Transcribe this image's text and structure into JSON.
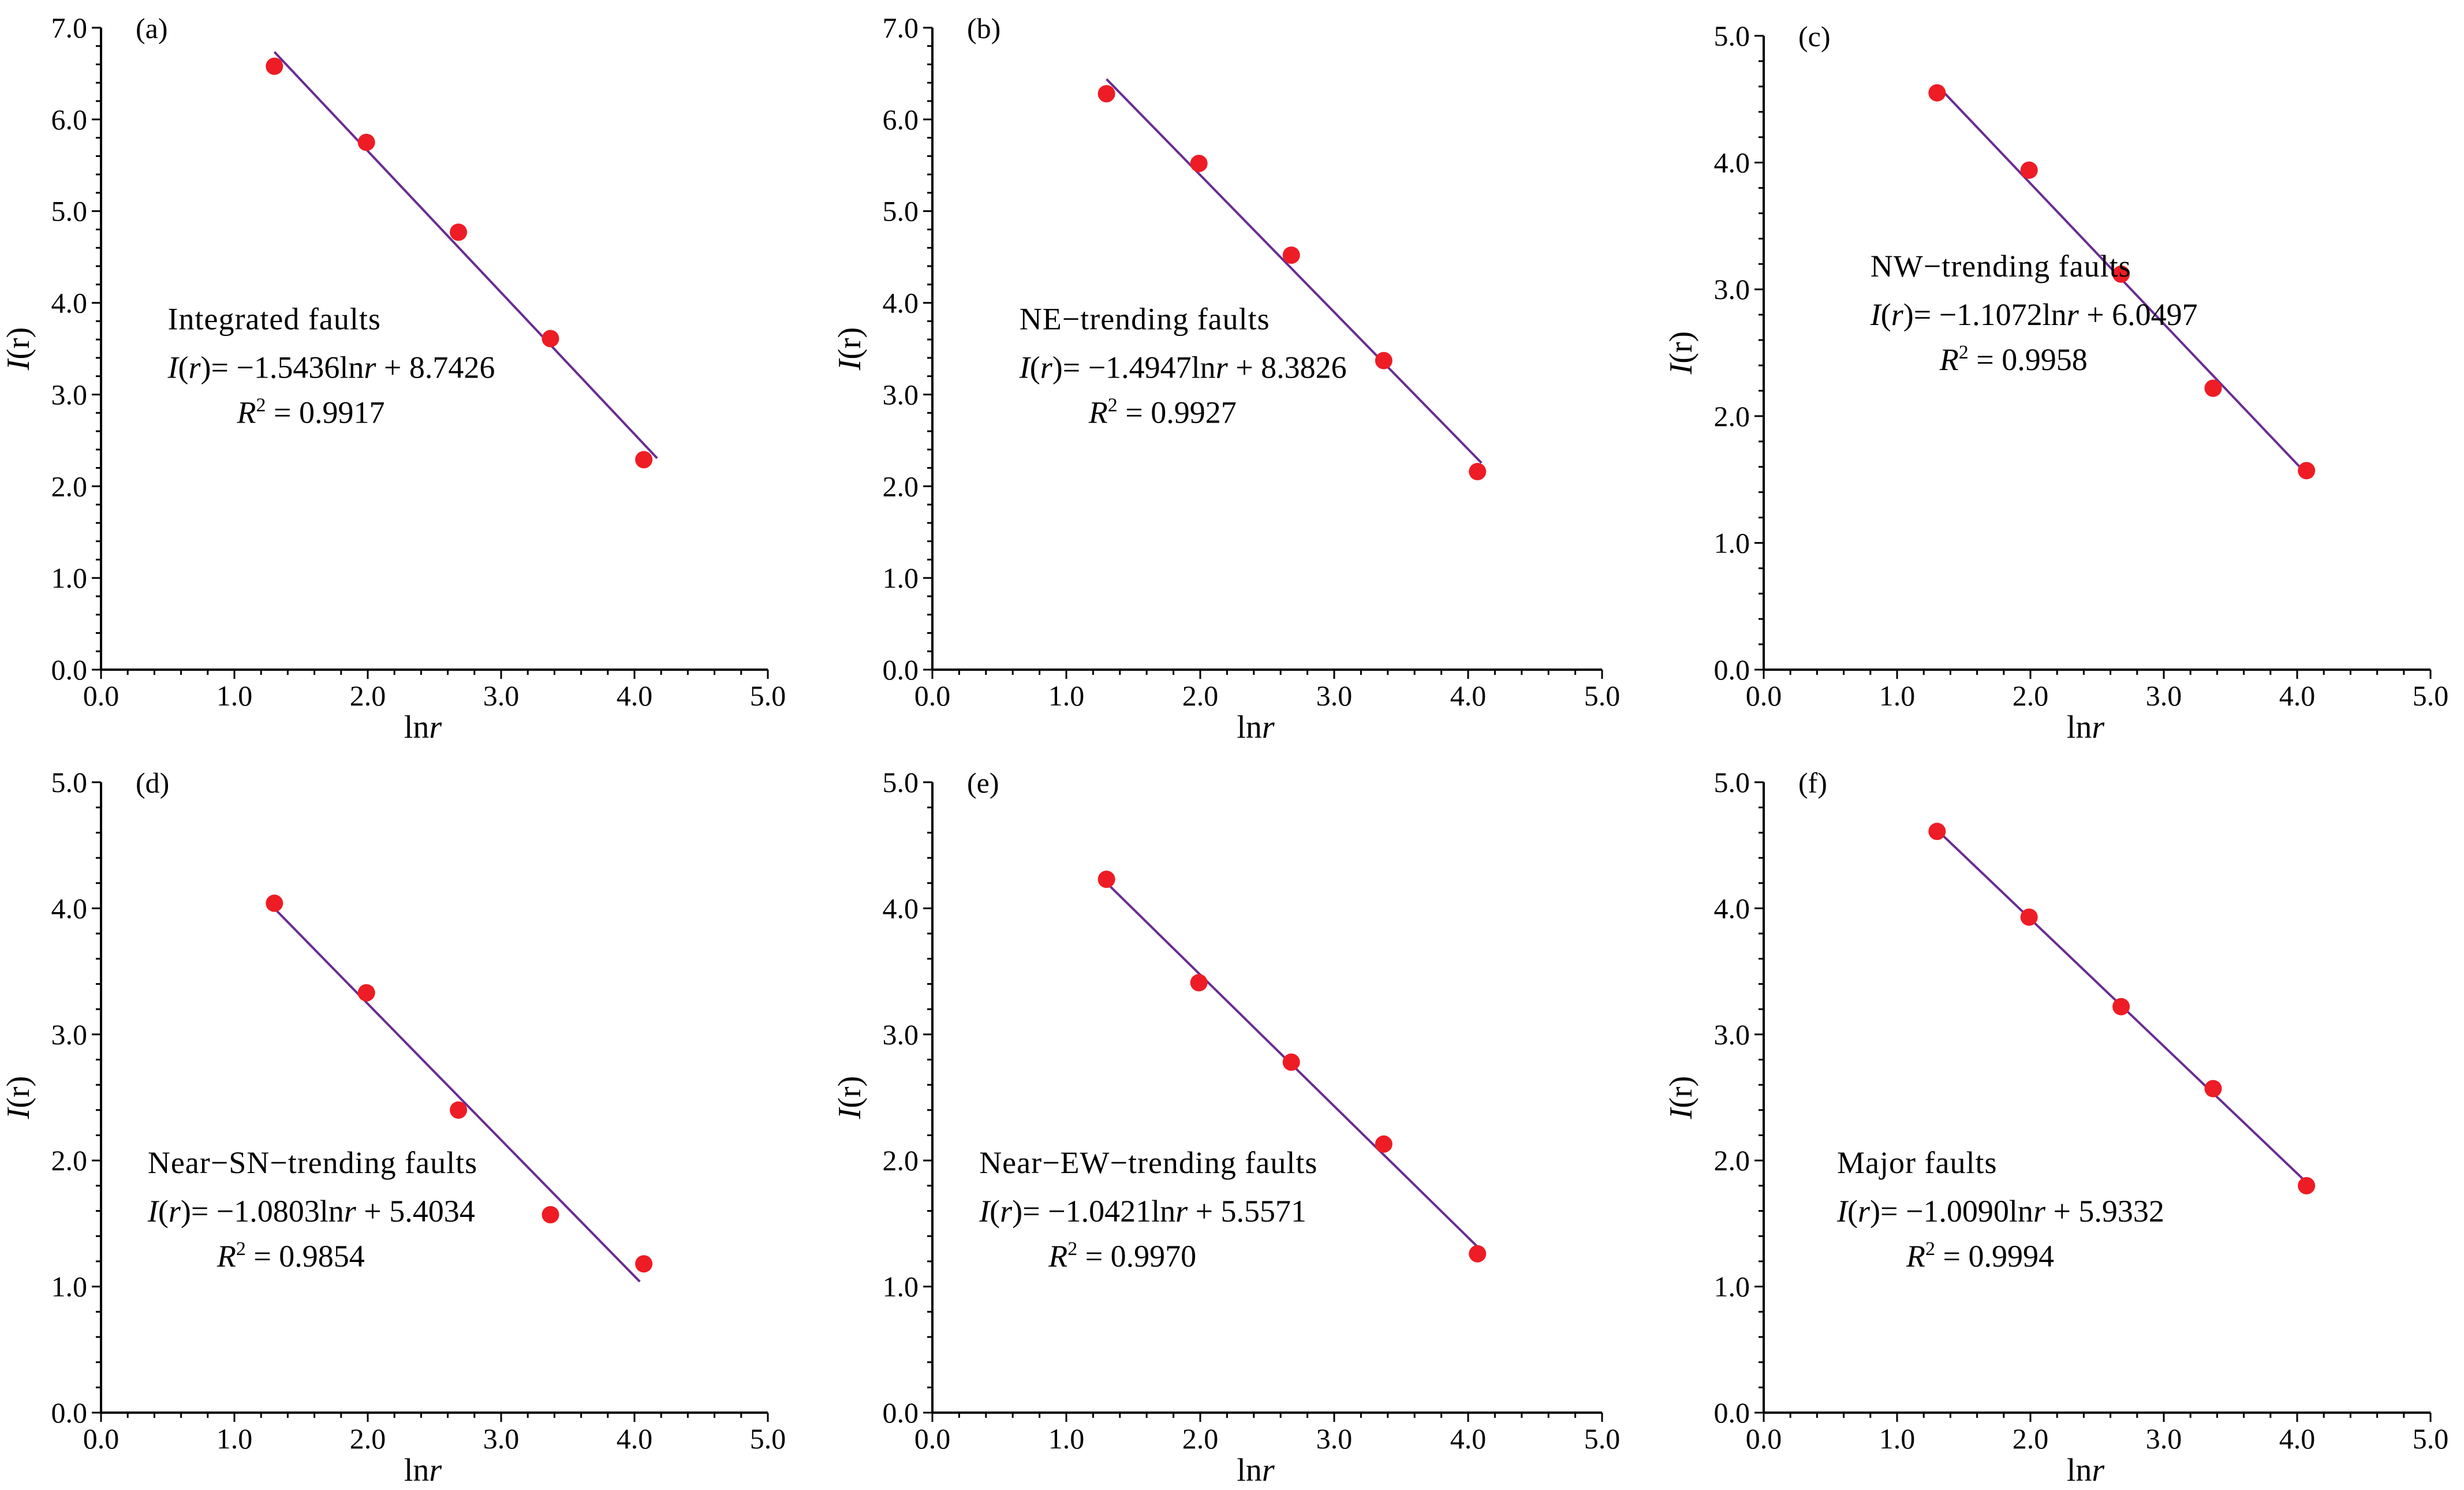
{
  "colors": {
    "point": "#ee1c25",
    "fit_line": "#6a2c91",
    "axis": "#000000"
  },
  "chart_data": [
    {
      "type": "scatter",
      "panel_label": "(a)",
      "series_name": "Integrated faults",
      "x": [
        1.3,
        1.99,
        2.68,
        3.37,
        4.07
      ],
      "y": [
        6.58,
        5.75,
        4.77,
        3.61,
        2.29
      ],
      "fit": {
        "slope": -1.5436,
        "intercept": 8.7426,
        "x_range": [
          1.3,
          4.17
        ]
      },
      "equation_text": "= −1.5436ln",
      "equation_tail": " + 8.7426",
      "r2_text": "= 0.9917",
      "xlabel": "ln",
      "xlabel_var": "r",
      "ylabel": "I",
      "ylabel_arg": "(r)",
      "xlim": [
        0,
        5
      ],
      "ylim": [
        0,
        7
      ],
      "xticks": [
        "0.0",
        "1.0",
        "2.0",
        "3.0",
        "4.0",
        "5.0"
      ],
      "yticks": [
        "0.0",
        "1.0",
        "2.0",
        "3.0",
        "4.0",
        "5.0",
        "6.0",
        "7.0"
      ]
    },
    {
      "type": "scatter",
      "panel_label": "(b)",
      "series_name": "NE−trending faults",
      "x": [
        1.3,
        1.99,
        2.68,
        3.37,
        4.07
      ],
      "y": [
        6.28,
        5.52,
        4.52,
        3.37,
        2.16
      ],
      "fit": {
        "slope": -1.4947,
        "intercept": 8.3826,
        "x_range": [
          1.3,
          4.1
        ]
      },
      "equation_text": "= −1.4947ln",
      "equation_tail": " + 8.3826",
      "r2_text": "= 0.9927",
      "xlabel": "ln",
      "xlabel_var": "r",
      "ylabel": "I",
      "ylabel_arg": "(r)",
      "xlim": [
        0,
        5
      ],
      "ylim": [
        0,
        7
      ],
      "xticks": [
        "0.0",
        "1.0",
        "2.0",
        "3.0",
        "4.0",
        "5.0"
      ],
      "yticks": [
        "0.0",
        "1.0",
        "2.0",
        "3.0",
        "4.0",
        "5.0",
        "6.0",
        "7.0"
      ]
    },
    {
      "type": "scatter",
      "panel_label": "(c)",
      "series_name": "NW−trending faults",
      "x": [
        1.3,
        1.99,
        2.68,
        3.37,
        4.07
      ],
      "y": [
        4.55,
        3.94,
        3.12,
        2.22,
        1.57
      ],
      "fit": {
        "slope": -1.1072,
        "intercept": 6.0497,
        "x_range": [
          1.3,
          4.08
        ]
      },
      "equation_text": "= −1.1072ln",
      "equation_tail": " + 6.0497",
      "r2_text": "= 0.9958",
      "xlabel": "ln",
      "xlabel_var": "r",
      "ylabel": "I",
      "ylabel_arg": "(r)",
      "xlim": [
        0,
        5
      ],
      "ylim": [
        0,
        5
      ],
      "xticks": [
        "0.0",
        "1.0",
        "2.0",
        "3.0",
        "4.0",
        "5.0"
      ],
      "yticks": [
        "0.0",
        "1.0",
        "2.0",
        "3.0",
        "4.0",
        "5.0"
      ]
    },
    {
      "type": "scatter",
      "panel_label": "(d)",
      "series_name": "Near−SN−trending faults",
      "x": [
        1.3,
        1.99,
        2.68,
        3.37,
        4.07
      ],
      "y": [
        4.04,
        3.33,
        2.4,
        1.57,
        1.18
      ],
      "fit": {
        "slope": -1.0803,
        "intercept": 5.4034,
        "x_range": [
          1.3,
          4.04
        ]
      },
      "equation_text": "= −1.0803ln",
      "equation_tail": " + 5.4034",
      "r2_text": "= 0.9854",
      "xlabel": "ln",
      "xlabel_var": "r",
      "ylabel": "I",
      "ylabel_arg": "(r)",
      "xlim": [
        0,
        5
      ],
      "ylim": [
        0,
        5
      ],
      "xticks": [
        "0.0",
        "1.0",
        "2.0",
        "3.0",
        "4.0",
        "5.0"
      ],
      "yticks": [
        "0.0",
        "1.0",
        "2.0",
        "3.0",
        "4.0",
        "5.0"
      ]
    },
    {
      "type": "scatter",
      "panel_label": "(e)",
      "series_name": "Near−EW−trending faults",
      "x": [
        1.3,
        1.99,
        2.68,
        3.37,
        4.07
      ],
      "y": [
        4.23,
        3.41,
        2.78,
        2.13,
        1.26
      ],
      "fit": {
        "slope": -1.0421,
        "intercept": 5.5571,
        "x_range": [
          1.3,
          4.1
        ]
      },
      "equation_text": "= −1.0421ln",
      "equation_tail": " + 5.5571",
      "r2_text": "= 0.9970",
      "xlabel": "ln",
      "xlabel_var": "r",
      "ylabel": "I",
      "ylabel_arg": "(r)",
      "xlim": [
        0,
        5
      ],
      "ylim": [
        0,
        5
      ],
      "xticks": [
        "0.0",
        "1.0",
        "2.0",
        "3.0",
        "4.0",
        "5.0"
      ],
      "yticks": [
        "0.0",
        "1.0",
        "2.0",
        "3.0",
        "4.0",
        "5.0"
      ]
    },
    {
      "type": "scatter",
      "panel_label": "(f)",
      "series_name": "Major faults",
      "x": [
        1.3,
        1.99,
        2.68,
        3.37,
        4.07
      ],
      "y": [
        4.61,
        3.93,
        3.22,
        2.57,
        1.8
      ],
      "fit": {
        "slope": -1.009,
        "intercept": 5.9332,
        "x_range": [
          1.3,
          4.08
        ]
      },
      "equation_text": "= −1.0090ln",
      "equation_tail": " + 5.9332",
      "r2_text": "= 0.9994",
      "xlabel": "ln",
      "xlabel_var": "r",
      "ylabel": "I",
      "ylabel_arg": "(r)",
      "xlim": [
        0,
        5
      ],
      "ylim": [
        0,
        5
      ],
      "xticks": [
        "0.0",
        "1.0",
        "2.0",
        "3.0",
        "4.0",
        "5.0"
      ],
      "yticks": [
        "0.0",
        "1.0",
        "2.0",
        "3.0",
        "4.0",
        "5.0"
      ]
    }
  ]
}
